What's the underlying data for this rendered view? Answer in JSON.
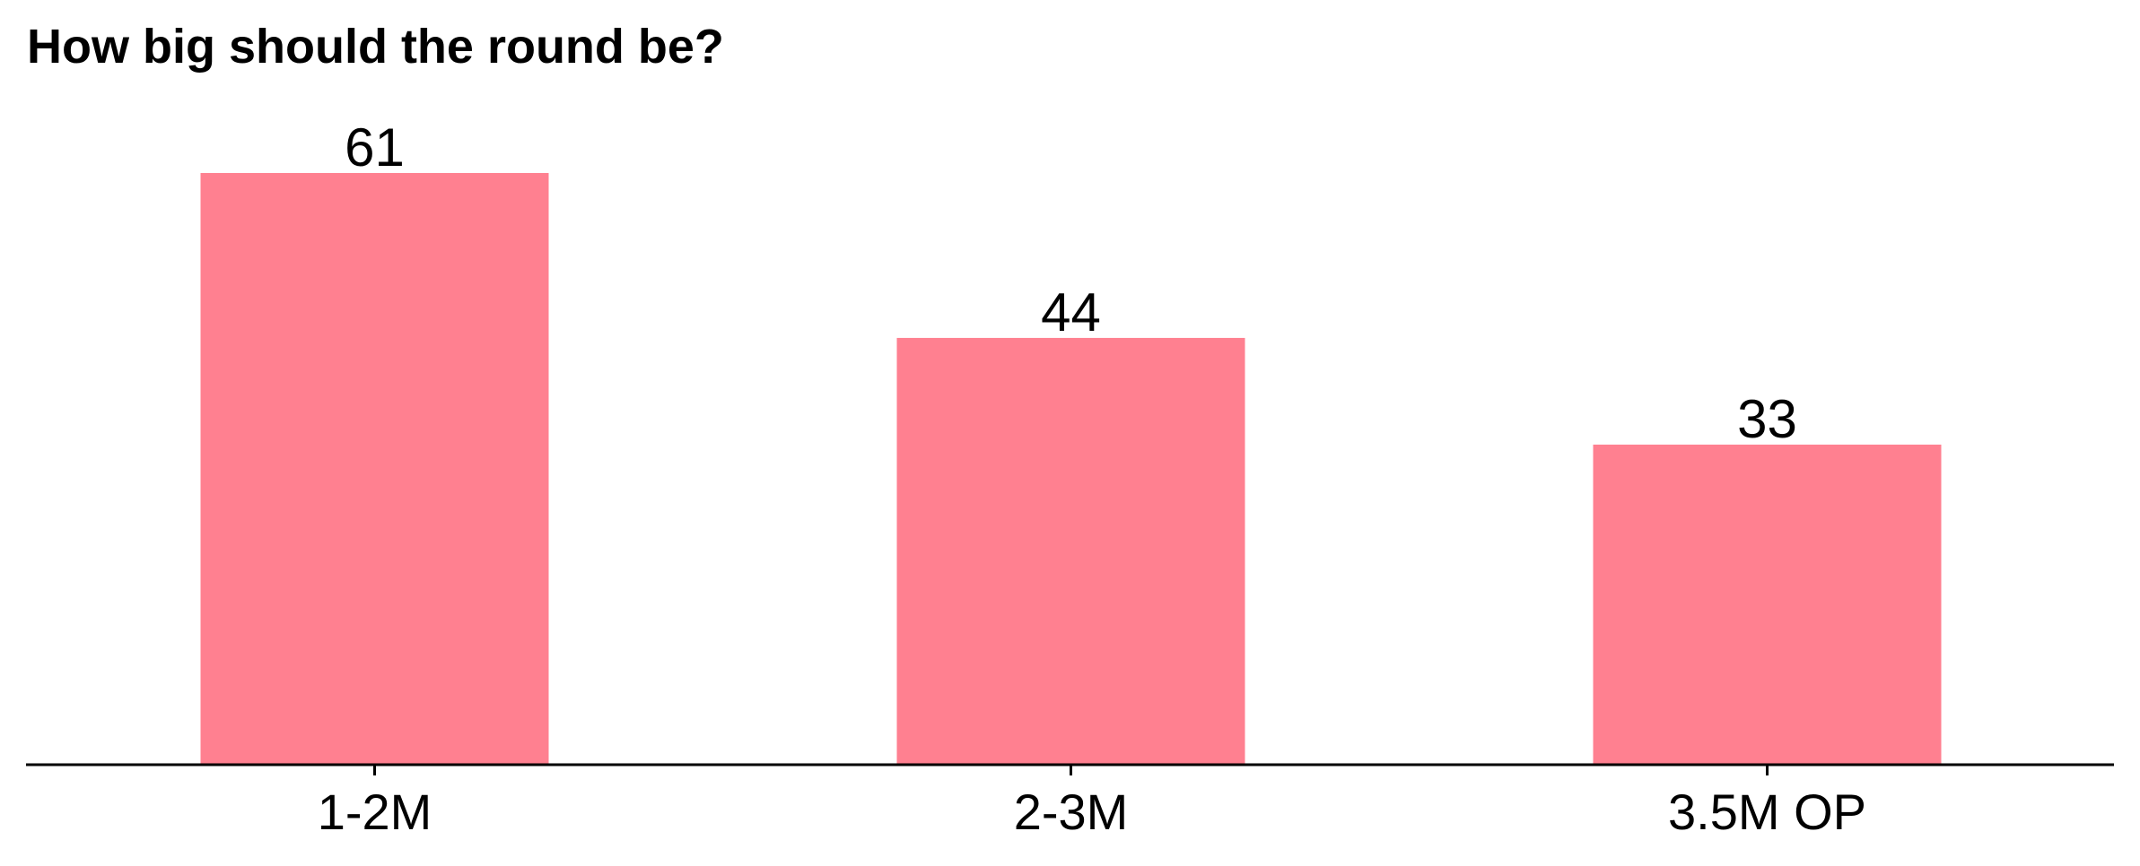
{
  "chart_data": {
    "type": "bar",
    "title": "How big should the round be?",
    "xlabel": "",
    "ylabel": "",
    "categories": [
      "1-2M",
      "2-3M",
      "3.5M OP"
    ],
    "values": [
      61,
      44,
      33
    ],
    "ylim": [
      0,
      61
    ],
    "grid": false,
    "legend": "none",
    "colors": {
      "bar": "#ff8090",
      "axis": "#000000",
      "text": "#000000"
    }
  }
}
